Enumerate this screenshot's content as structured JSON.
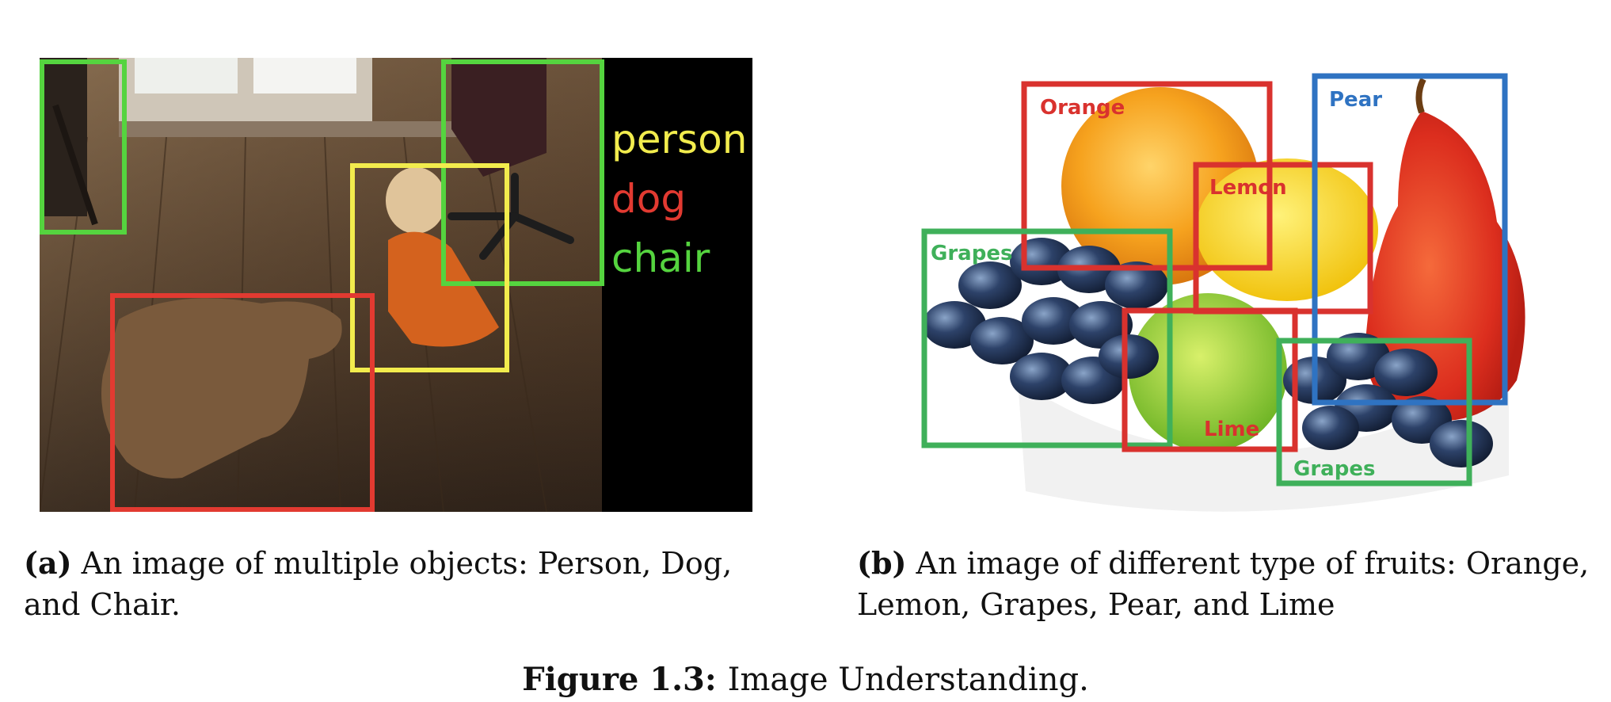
{
  "panel_a": {
    "legend": [
      {
        "label": "person",
        "color": "#f2ec4d"
      },
      {
        "label": "dog",
        "color": "#e23a31"
      },
      {
        "label": "chair",
        "color": "#55d43f"
      }
    ],
    "caption_tag": "(a)",
    "caption_text": "An image of multiple objects: Person, Dog, and Chair."
  },
  "panel_b": {
    "labels": {
      "orange": "Orange",
      "lemon": "Lemon",
      "pear": "Pear",
      "grapes_left": "Grapes",
      "lime": "Lime",
      "grapes_right": "Grapes"
    },
    "colors": {
      "red": "#d9322e",
      "blue": "#2f73c2",
      "green": "#3fb05a"
    },
    "caption_tag": "(b)",
    "caption_text": "An image of different type of fruits: Orange, Lemon, Grapes, Pear, and Lime"
  },
  "figure": {
    "label": "Figure 1.3:",
    "text": "Image Understanding."
  }
}
